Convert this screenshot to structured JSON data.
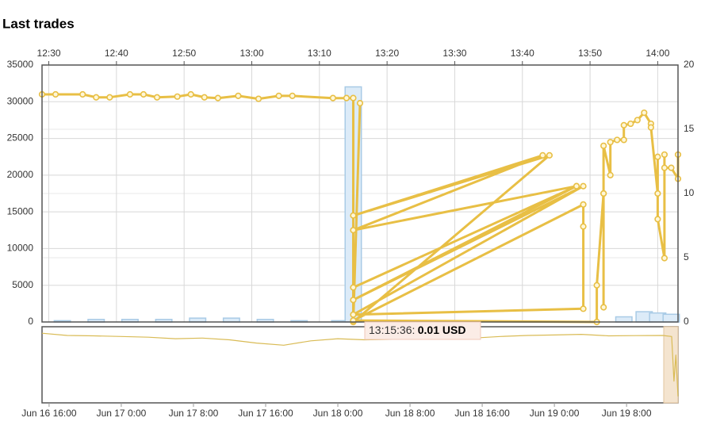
{
  "chart_data": [
    {
      "type": "line",
      "title": "Last trades",
      "xlim": [
        "12:29",
        "14:03"
      ],
      "xticks": [
        "12:30",
        "12:40",
        "12:50",
        "13:00",
        "13:10",
        "13:20",
        "13:30",
        "13:40",
        "13:50",
        "14:00"
      ],
      "ylim": [
        0,
        35000
      ],
      "yticks": [
        0,
        5000,
        10000,
        15000,
        20000,
        25000,
        30000,
        35000
      ],
      "y2lim": [
        0,
        20
      ],
      "y2ticks": [
        0,
        5,
        10,
        15,
        20
      ],
      "grid": true,
      "annotation": {
        "time": "13:15:36:",
        "value": "0.01 USD"
      },
      "series": [
        {
          "type": "bar",
          "axis": "y2",
          "color": "#dcebf8",
          "x": [
            "12:32",
            "12:37",
            "12:42",
            "12:47",
            "12:52",
            "12:57",
            "13:02",
            "13:07",
            "13:13",
            "13:15",
            "13:55",
            "13:58",
            "14:00",
            "14:02"
          ],
          "values": [
            0.1,
            0.2,
            0.2,
            0.2,
            0.3,
            0.3,
            0.2,
            0.1,
            0.1,
            18.3,
            0.4,
            0.8,
            0.7,
            0.6
          ]
        },
        {
          "type": "line",
          "color": "#e8bf45",
          "x": [
            "12:29",
            "12:31",
            "12:35",
            "12:37",
            "12:39",
            "12:42",
            "12:44",
            "12:46",
            "12:49",
            "12:51",
            "12:53",
            "12:55",
            "12:58",
            "13:01",
            "13:04",
            "13:06",
            "13:12",
            "13:14",
            "13:15",
            "13:15",
            "13:16",
            "13:15",
            "13:44",
            "13:15",
            "13:43",
            "13:15",
            "13:48",
            "13:15",
            "13:48",
            "13:15",
            "13:49",
            "13:15",
            "13:49",
            "13:49",
            "13:49",
            "13:15",
            "13:51",
            "13:51",
            "13:52",
            "13:52",
            "13:52",
            "13:52",
            "13:53",
            "13:53",
            "13:54",
            "13:55",
            "13:55",
            "13:56",
            "13:57",
            "13:58",
            "13:59",
            "13:59",
            "14:00",
            "14:00",
            "14:00",
            "14:01",
            "14:01",
            "14:01",
            "14:02",
            "14:03",
            "14:03"
          ],
          "values": [
            31000,
            31000,
            31000,
            30600,
            30600,
            31000,
            31000,
            30600,
            30700,
            31000,
            30600,
            30500,
            30800,
            30400,
            30800,
            30800,
            30500,
            30500,
            30500,
            0,
            29800,
            0,
            22700,
            14500,
            22700,
            12500,
            18500,
            4700,
            18500,
            3000,
            18500,
            1000,
            1800,
            13000,
            16000,
            200,
            0,
            5000,
            17500,
            2000,
            17500,
            24000,
            20000,
            24500,
            24800,
            24800,
            26800,
            27000,
            27500,
            28500,
            27000,
            26500,
            17500,
            22500,
            14000,
            8700,
            22800,
            21000,
            21000,
            19500,
            22800
          ]
        }
      ]
    },
    {
      "type": "line",
      "xlim": [
        "Jun 16 15:13",
        "Jun 19 13:42"
      ],
      "xticks": [
        "Jun 16 16:00",
        "Jun 17 0:00",
        "Jun 17 8:00",
        "Jun 17 16:00",
        "Jun 18 0:00",
        "Jun 18 8:00",
        "Jun 18 16:00",
        "Jun 19 0:00",
        "Jun 19 8:00"
      ],
      "ylim": [
        0,
        35000
      ],
      "series": [
        {
          "type": "line",
          "color": "#d9bb55",
          "x": [
            "Jun 16 15:13",
            "Jun 16 18:00",
            "Jun 16 21:00",
            "Jun 17 0:00",
            "Jun 17 3:00",
            "Jun 17 6:00",
            "Jun 17 9:00",
            "Jun 17 12:00",
            "Jun 17 15:00",
            "Jun 17 18:00",
            "Jun 17 21:00",
            "Jun 18 0:00",
            "Jun 18 3:00",
            "Jun 18 6:00",
            "Jun 18 9:00",
            "Jun 18 12:00",
            "Jun 18 15:00",
            "Jun 18 18:00",
            "Jun 18 21:00",
            "Jun 19 0:00",
            "Jun 19 3:00",
            "Jun 19 6:00",
            "Jun 19 9:00",
            "Jun 19 12:00",
            "Jun 19 13:00",
            "Jun 19 13:15",
            "Jun 19 13:28",
            "Jun 19 13:42"
          ],
          "values": [
            32000,
            31000,
            30800,
            30500,
            30200,
            29500,
            29800,
            29000,
            27500,
            26500,
            28500,
            29500,
            29000,
            29200,
            29300,
            30000,
            29800,
            30500,
            31000,
            31200,
            31500,
            30800,
            30900,
            31000,
            30500,
            10000,
            22000,
            3000
          ]
        }
      ]
    }
  ]
}
